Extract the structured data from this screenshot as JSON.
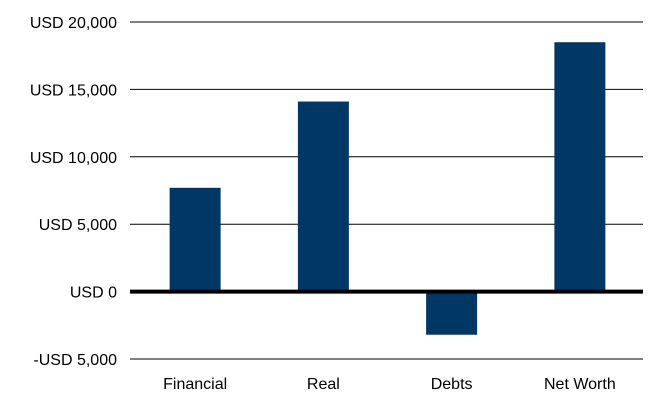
{
  "chart_data": {
    "type": "bar",
    "title": "",
    "xlabel": "",
    "ylabel": "",
    "categories": [
      "Financial",
      "Real",
      "Debts",
      "Net Worth"
    ],
    "values": [
      7700,
      14100,
      -3200,
      18500
    ],
    "ylim": [
      -5000,
      20000
    ],
    "yticks": [
      20000,
      15000,
      10000,
      5000,
      0,
      -5000
    ],
    "ytick_labels": [
      "USD 20,000",
      "USD 15,000",
      "USD 10,000",
      "USD 5,000",
      "USD 0",
      "-USD 5,000"
    ],
    "grid": true,
    "legend": "none",
    "colors": {
      "bar": "#003764",
      "grid": "#000000",
      "zero_line": "#000000"
    }
  }
}
